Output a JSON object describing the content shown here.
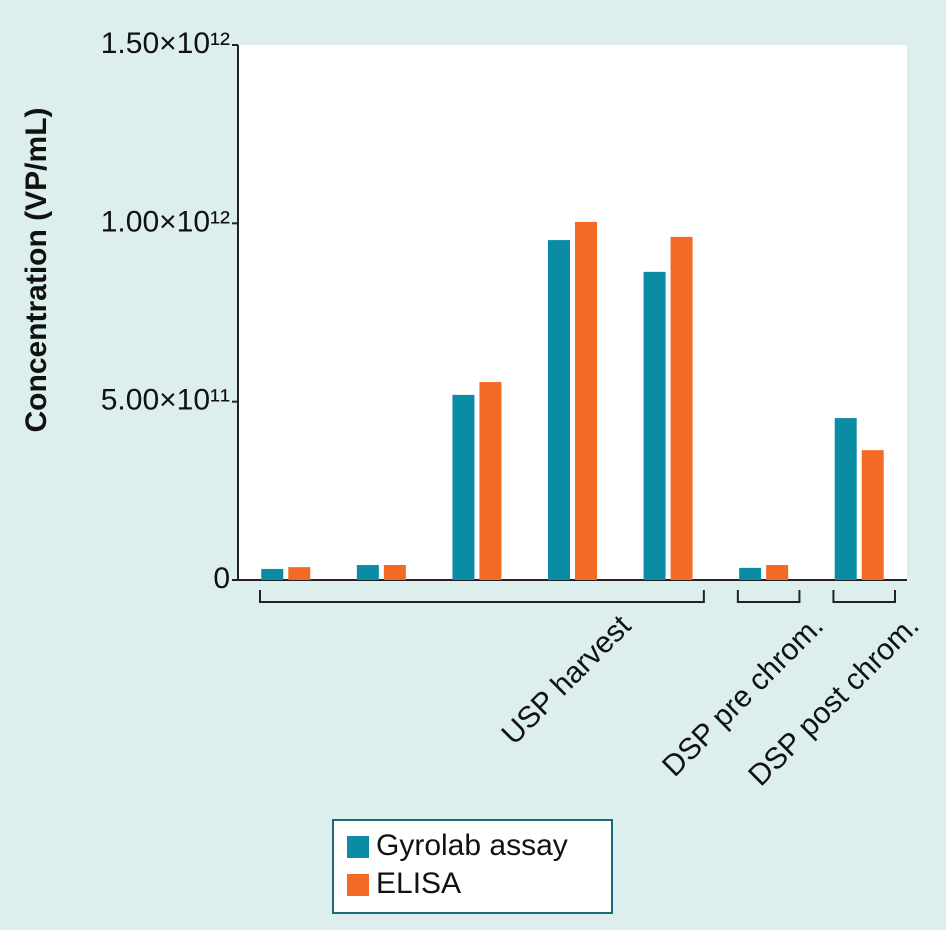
{
  "chart_data": {
    "type": "bar",
    "y_label": "Concentration (VP/mL)",
    "categories": [
      null,
      null,
      null,
      null,
      null,
      null,
      null
    ],
    "category_groups": [
      "USP harvest",
      "USP harvest",
      "USP harvest",
      "USP harvest",
      "USP harvest",
      "DSP pre chrom.",
      "DSP post chrom."
    ],
    "series": [
      {
        "name": "Gyrolab assay",
        "color": "#0b8ca5",
        "values": [
          31000000000,
          42000000000,
          519000000000,
          953000000000,
          864000000000,
          34000000000,
          454000000000
        ]
      },
      {
        "name": "ELISA",
        "color": "#f26a25",
        "values": [
          36000000000,
          42000000000,
          555000000000,
          1004000000000,
          962000000000,
          42000000000,
          364000000000
        ]
      }
    ],
    "ylim": [
      0,
      1500000000000
    ],
    "yticks": [
      0,
      {
        "value": 500000000000,
        "label": "5.00×10¹¹"
      },
      {
        "value": 1000000000000,
        "label": "1.00×10¹²"
      },
      {
        "value": 1500000000000,
        "label": "1.50×10¹²"
      }
    ],
    "grid": false,
    "legend": "bottom"
  }
}
